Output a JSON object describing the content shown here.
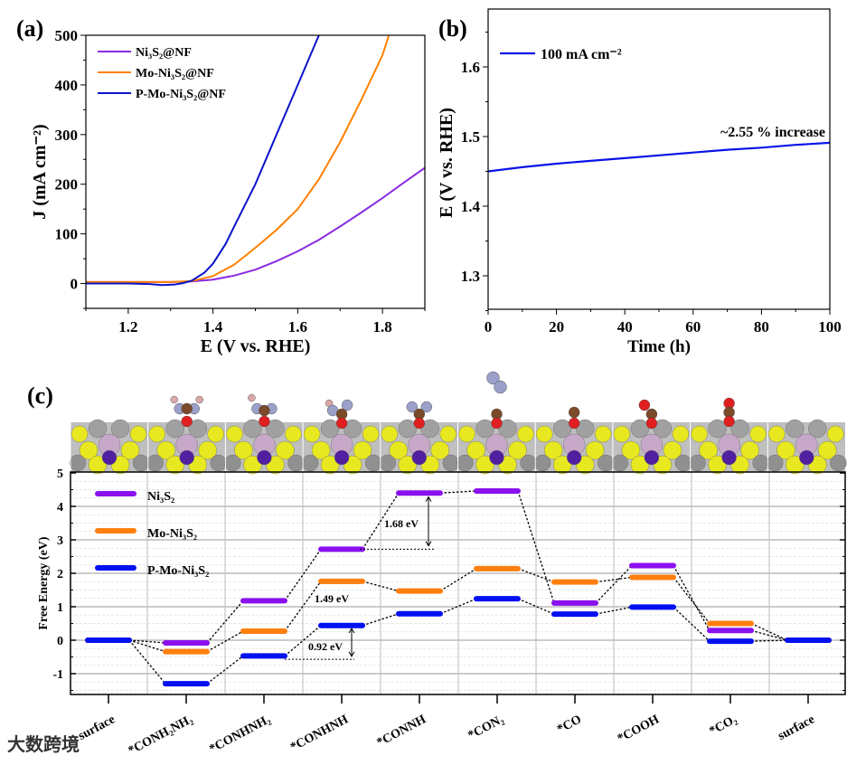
{
  "panels": {
    "a": "(a)",
    "b": "(b)",
    "c": "(c)"
  },
  "watermark": "大数跨境",
  "chart_data": [
    {
      "type": "line",
      "title": "",
      "xlabel": "E (V vs. RHE)",
      "ylabel": "J (mA cm⁻²)",
      "xlim": [
        1.1,
        1.9
      ],
      "ylim": [
        -50,
        500
      ],
      "xticks": [
        "1.2",
        "1.4",
        "1.6",
        "1.8"
      ],
      "yticks": [
        "0",
        "100",
        "200",
        "300",
        "400",
        "500"
      ],
      "legend_position": "top-left",
      "series": [
        {
          "name": "Ni₃S₂@NF",
          "color": "#8a2be2",
          "x": [
            1.1,
            1.3,
            1.35,
            1.4,
            1.45,
            1.5,
            1.55,
            1.6,
            1.65,
            1.7,
            1.75,
            1.8,
            1.85,
            1.9
          ],
          "y": [
            3,
            3,
            4,
            8,
            16,
            28,
            45,
            65,
            88,
            115,
            143,
            172,
            203,
            233
          ]
        },
        {
          "name": "Mo-Ni₃S₂@NF",
          "color": "#ff8000",
          "x": [
            1.1,
            1.3,
            1.35,
            1.4,
            1.45,
            1.5,
            1.55,
            1.6,
            1.65,
            1.7,
            1.75,
            1.8,
            1.815
          ],
          "y": [
            3,
            3,
            5,
            15,
            38,
            72,
            108,
            150,
            210,
            285,
            370,
            460,
            500
          ]
        },
        {
          "name": "P-Mo-Ni₃S₂@NF",
          "color": "#0a14c8",
          "x": [
            1.1,
            1.2,
            1.25,
            1.28,
            1.31,
            1.33,
            1.35,
            1.38,
            1.4,
            1.43,
            1.45,
            1.5,
            1.55,
            1.6,
            1.63,
            1.65
          ],
          "y": [
            0,
            0,
            -1,
            -3,
            -2,
            1,
            6,
            22,
            40,
            80,
            115,
            200,
            300,
            400,
            460,
            500
          ]
        }
      ]
    },
    {
      "type": "line",
      "title": "",
      "xlabel": "Time (h)",
      "ylabel": "E (V vs. RHE)",
      "xlim": [
        0,
        100
      ],
      "ylim": [
        1.25,
        1.68
      ],
      "xticks": [
        "0",
        "20",
        "40",
        "60",
        "80",
        "100"
      ],
      "yticks": [
        "1.3",
        "1.4",
        "1.5",
        "1.6"
      ],
      "legend_position": "top-left",
      "annotation": "~2.55 % increase",
      "series": [
        {
          "name": "100 mA cm⁻²",
          "color": "#0a14e6",
          "x": [
            0,
            10,
            20,
            30,
            40,
            50,
            60,
            70,
            80,
            90,
            100
          ],
          "y": [
            1.45,
            1.456,
            1.461,
            1.465,
            1.469,
            1.473,
            1.477,
            1.481,
            1.484,
            1.488,
            1.491
          ]
        }
      ]
    },
    {
      "type": "energy-diagram",
      "title": "",
      "xlabel": "",
      "ylabel": "Free Energy (eV)",
      "ylim": [
        -1.62,
        5
      ],
      "yticks": [
        "-1",
        "0",
        "1",
        "2",
        "3",
        "4",
        "5"
      ],
      "legend_position": "top-left",
      "categories": [
        "surface",
        "*CONH₂NH₂",
        "*CONHNH₂",
        "*CONHNH",
        "*CONNH",
        "*CON₂",
        "*CO",
        "*COOH",
        "*CO₂",
        "surface"
      ],
      "series": [
        {
          "name": "Ni₃S₂",
          "color": "#8a10ee",
          "values": [
            0,
            -0.08,
            1.18,
            2.72,
            4.4,
            4.46,
            1.11,
            2.23,
            0.29,
            0
          ]
        },
        {
          "name": "Mo-Ni₃S₂",
          "color": "#ff7f0e",
          "values": [
            0,
            -0.34,
            0.27,
            1.76,
            1.47,
            2.14,
            1.74,
            1.88,
            0.5,
            0
          ]
        },
        {
          "name": "P-Mo-Ni₃S₂",
          "color": "#0010f0",
          "values": [
            0,
            -1.3,
            -0.47,
            0.44,
            0.79,
            1.24,
            0.78,
            0.99,
            -0.03,
            0
          ]
        }
      ],
      "annotations": [
        {
          "text": "1.68 eV",
          "color": "#8a10ee"
        },
        {
          "text": "1.49 eV",
          "color": "#ff7f0e"
        },
        {
          "text": "0.92 eV",
          "color": "#0010f0"
        }
      ]
    }
  ]
}
